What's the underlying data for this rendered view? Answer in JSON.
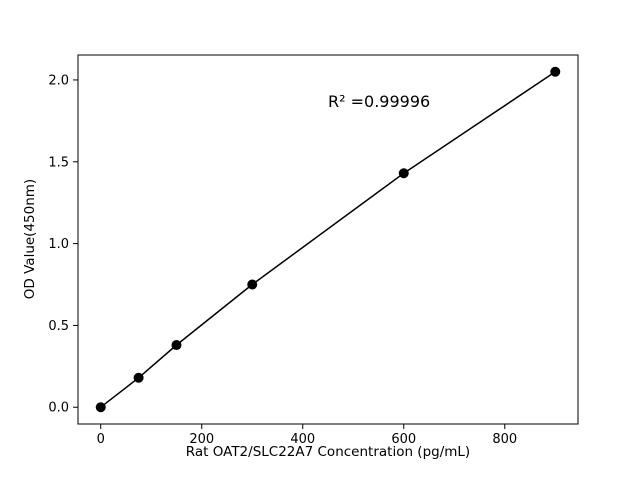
{
  "chart_data": {
    "type": "line",
    "x": [
      0,
      75,
      150,
      300,
      600,
      900
    ],
    "y": [
      0.0,
      0.18,
      0.38,
      0.75,
      1.43,
      2.05
    ],
    "xlabel": "Rat OAT2/SLC22A7 Concentration (pg/mL)",
    "ylabel": "OD Value(450nm)",
    "annotation": "R² =0.99996",
    "xticks": [
      0,
      200,
      400,
      600,
      800
    ],
    "yticks": [
      0.0,
      0.5,
      1.0,
      1.5,
      2.0
    ],
    "xlim": [
      -45,
      945
    ],
    "ylim": [
      -0.1025,
      2.1525
    ],
    "grid": false,
    "legend_position": "none",
    "line_color": "#000000",
    "marker_color": "#000000",
    "axis_color": "#000000",
    "background_color": "#ffffff"
  }
}
